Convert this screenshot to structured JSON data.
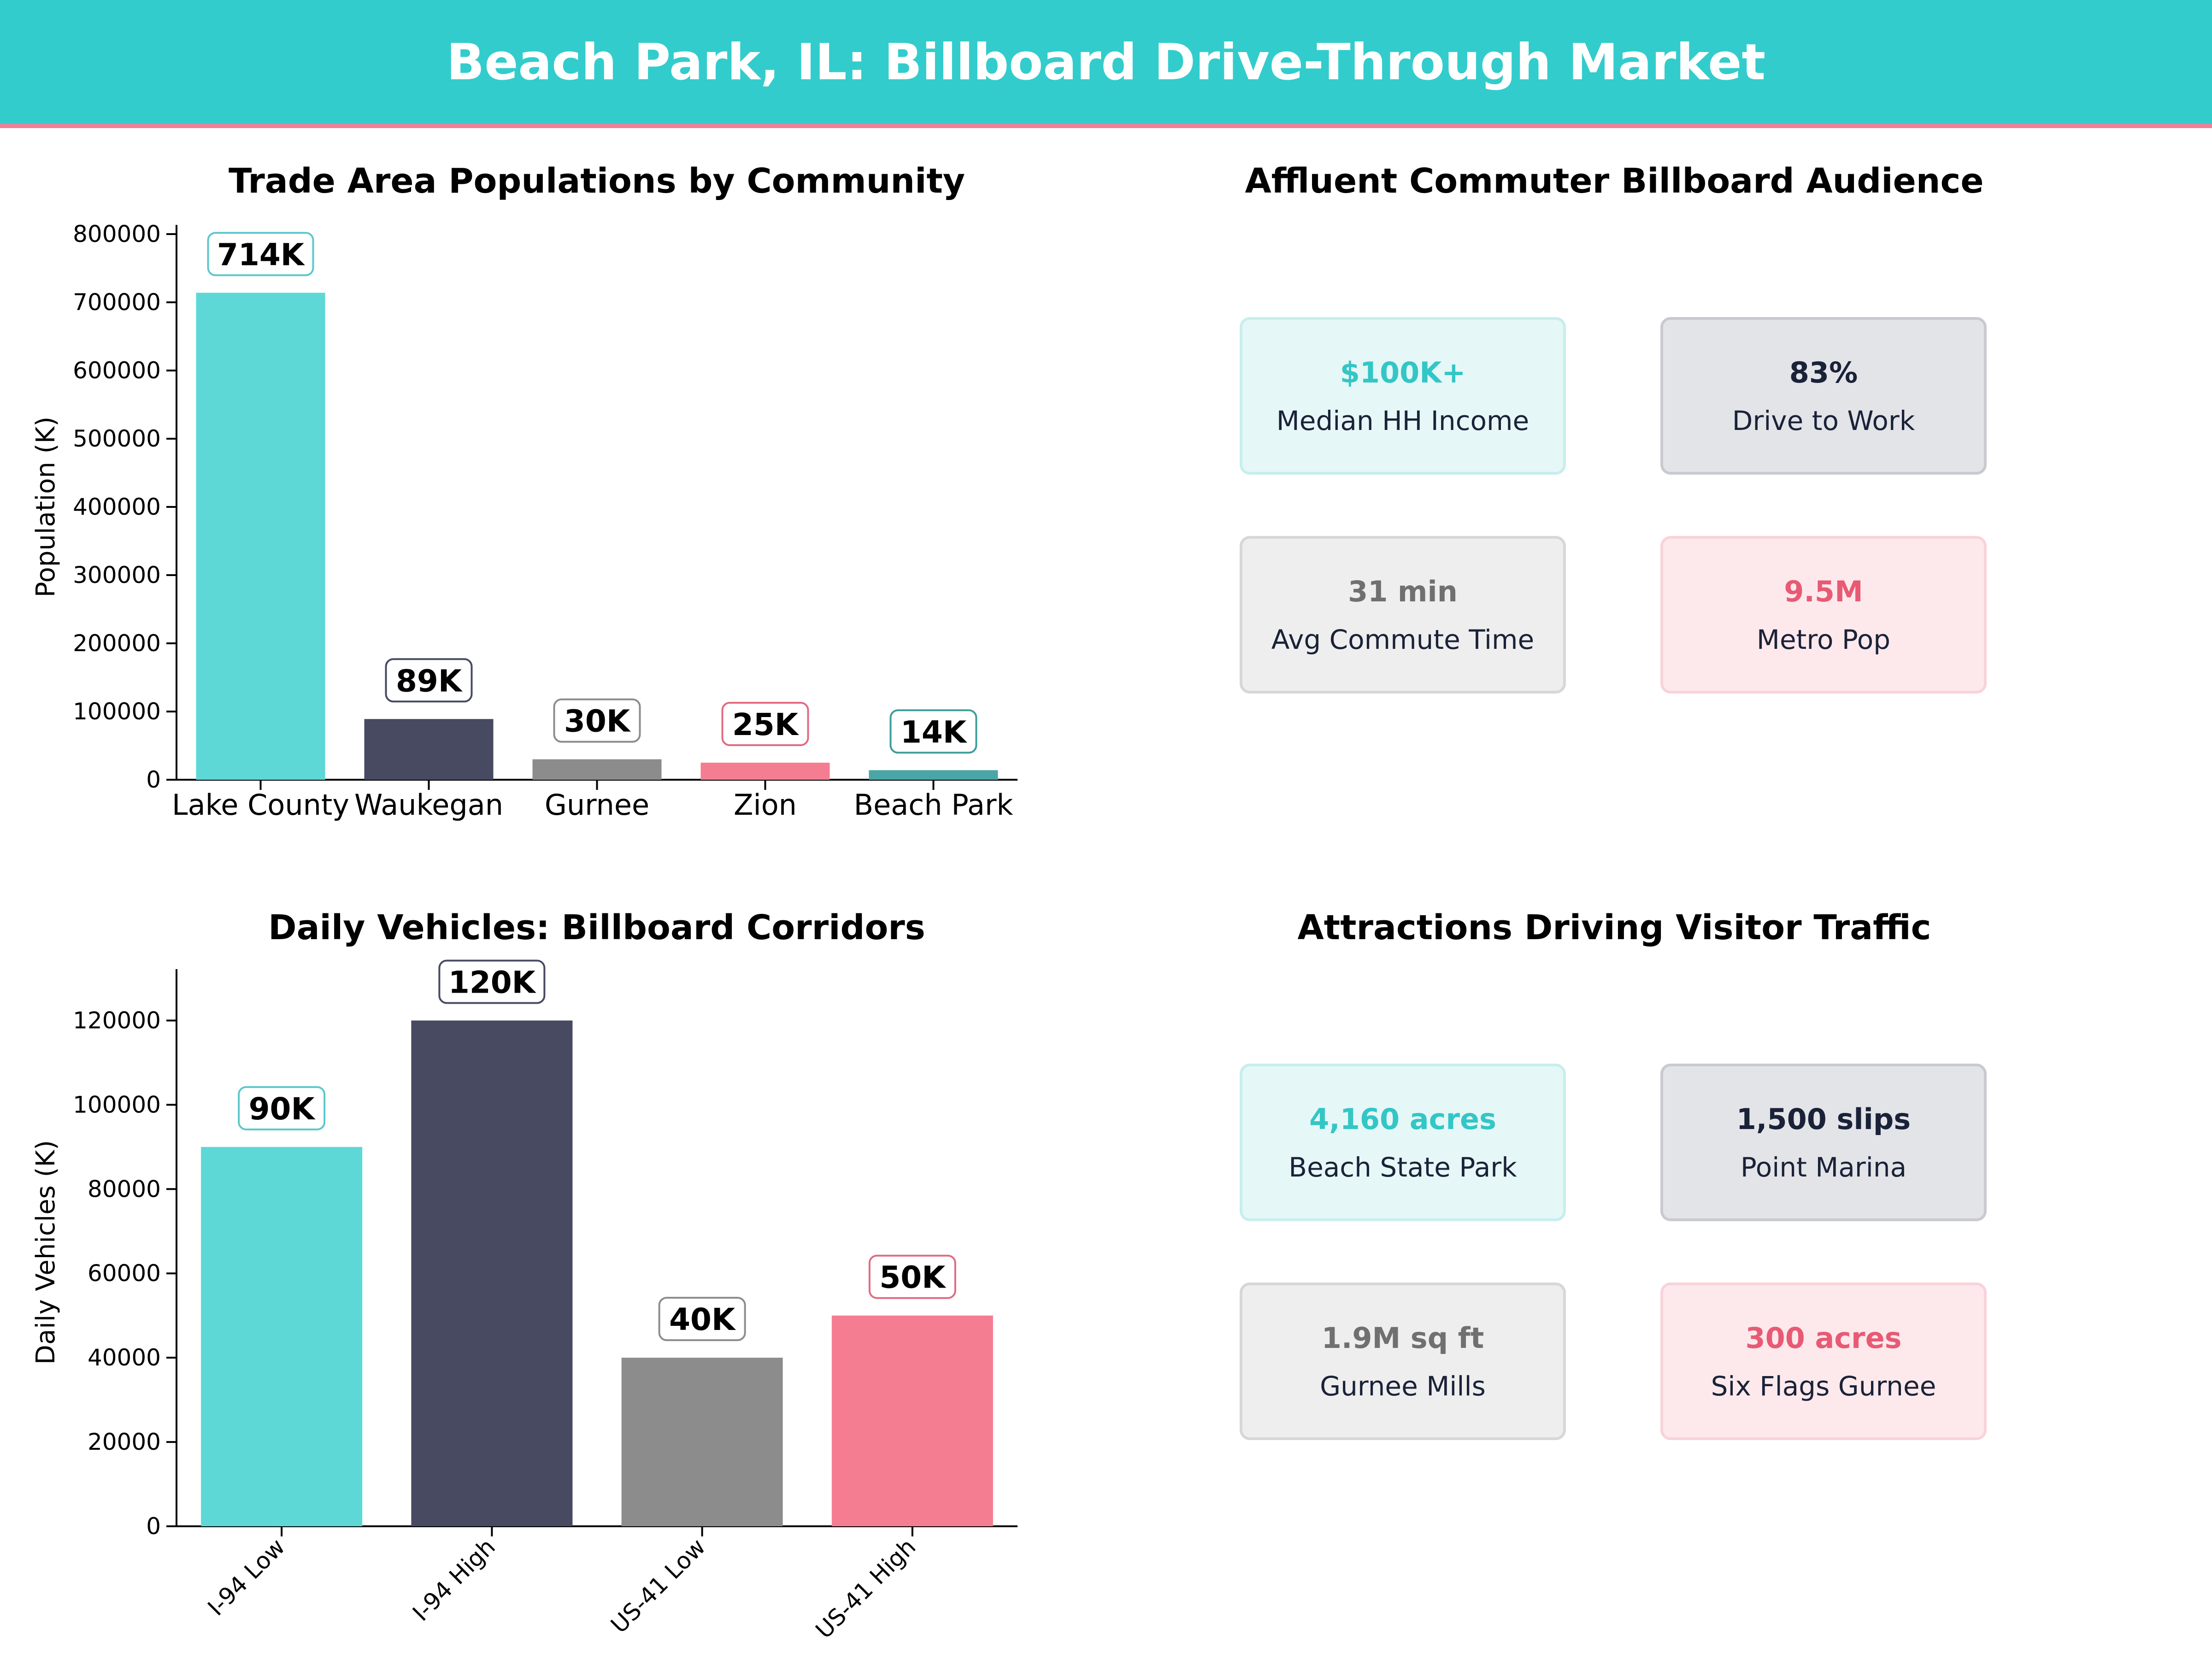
{
  "header": {
    "title": "Beach Park, IL: Billboard Drive-Through Market"
  },
  "chart_data": [
    {
      "type": "bar",
      "title": "Trade Area Populations by Community",
      "ylabel": "Population (K)",
      "xlabel": "",
      "categories": [
        "Lake County",
        "Waukegan",
        "Gurnee",
        "Zion",
        "Beach Park"
      ],
      "values": [
        714000,
        89000,
        30000,
        25000,
        14000
      ],
      "labels": [
        "714K",
        "89K",
        "30K",
        "25K",
        "14K"
      ],
      "colors": [
        "#5dd8d6",
        "#474a61",
        "#8c8c8c",
        "#f57d91",
        "#4aa6a6"
      ],
      "label_borders": [
        "#5bc8cc",
        "#474a61",
        "#8c8c8c",
        "#e06b82",
        "#3d9d9c"
      ],
      "ylim": [
        0,
        800000
      ],
      "yticks": [
        0,
        100000,
        200000,
        300000,
        400000,
        500000,
        600000,
        700000,
        800000
      ],
      "grid": false
    },
    {
      "type": "bar",
      "title": "Daily Vehicles: Billboard Corridors",
      "ylabel": "Daily Vehicles (K)",
      "xlabel": "",
      "categories": [
        "I-94 Low",
        "I-94 High",
        "US-41 Low",
        "US-41 High"
      ],
      "values": [
        90000,
        120000,
        40000,
        50000
      ],
      "labels": [
        "90K",
        "120K",
        "40K",
        "50K"
      ],
      "colors": [
        "#5dd8d6",
        "#474a61",
        "#8c8c8c",
        "#f57d91"
      ],
      "label_borders": [
        "#5bc8cc",
        "#474a61",
        "#8c8c8c",
        "#e06b82"
      ],
      "ylim": [
        0,
        130000
      ],
      "yticks": [
        0,
        20000,
        40000,
        60000,
        80000,
        100000,
        120000
      ],
      "grid": false
    }
  ],
  "audience": {
    "title": "Affluent Commuter Billboard Audience",
    "cards": [
      {
        "value": "$100K+",
        "label": "Median HH Income",
        "value_color": "#33c6c6",
        "bg": "#e6f7f7",
        "border": "#c7eeee"
      },
      {
        "value": "83%",
        "label": "Drive to Work",
        "value_color": "#1a2238",
        "bg": "#e3e4e8",
        "border": "#c9cad0"
      },
      {
        "value": "31 min",
        "label": "Avg Commute Time",
        "value_color": "#707070",
        "bg": "#eeeeee",
        "border": "#d7d7d7"
      },
      {
        "value": "9.5M",
        "label": "Metro Pop",
        "value_color": "#e85a74",
        "bg": "#fde9ec",
        "border": "#f9d3da"
      }
    ]
  },
  "attractions": {
    "title": "Attractions Driving Visitor Traffic",
    "cards": [
      {
        "value": "4,160 acres",
        "label": "Beach State Park",
        "value_color": "#33c6c6",
        "bg": "#e6f7f7",
        "border": "#c7eeee"
      },
      {
        "value": "1,500 slips",
        "label": "Point Marina",
        "value_color": "#1a2238",
        "bg": "#e3e4e8",
        "border": "#c9cad0"
      },
      {
        "value": "1.9M sq ft",
        "label": "Gurnee Mills",
        "value_color": "#707070",
        "bg": "#eeeeee",
        "border": "#d7d7d7"
      },
      {
        "value": "300 acres",
        "label": "Six Flags Gurnee",
        "value_color": "#e85a74",
        "bg": "#fde9ec",
        "border": "#f9d3da"
      }
    ]
  }
}
